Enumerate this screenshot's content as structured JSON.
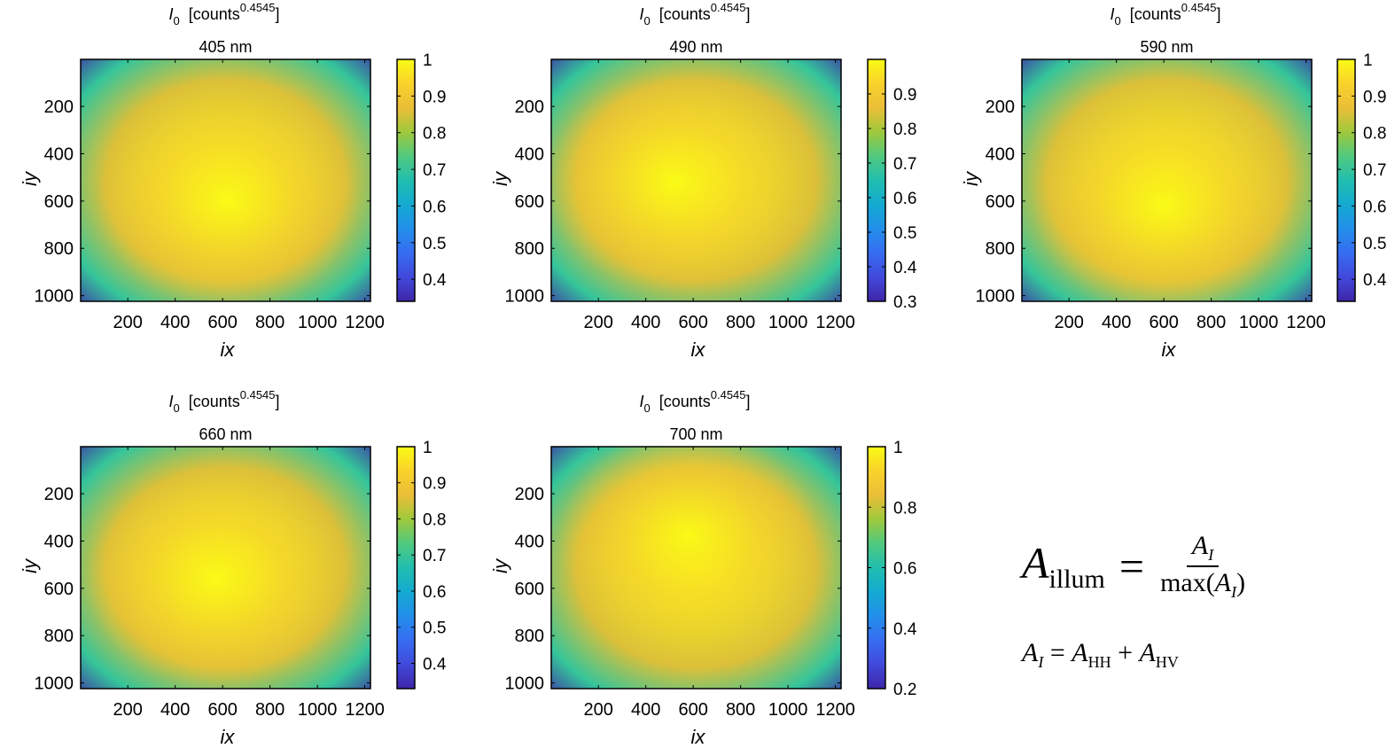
{
  "chart_data": [
    {
      "type": "heatmap",
      "title": "I0 [counts^0.4545]",
      "subtitle": "405 nm",
      "xlabel": "ix",
      "ylabel": "iy",
      "xlim": [
        1,
        1224
      ],
      "ylim": [
        1,
        1024
      ],
      "xticks": [
        200,
        400,
        600,
        800,
        1000,
        1200
      ],
      "yticks": [
        200,
        400,
        600,
        800,
        1000
      ],
      "colormap": "parula",
      "clim": [
        0.34,
        1.0
      ],
      "colorbar_ticks": [
        0.4,
        0.5,
        0.6,
        0.7,
        0.8,
        0.9,
        1
      ],
      "peak_center": [
        620,
        600
      ],
      "min_value": 0.34
    },
    {
      "type": "heatmap",
      "title": "I0 [counts^0.4545]",
      "subtitle": "490 nm",
      "xlabel": "ix",
      "ylabel": "iy",
      "xlim": [
        1,
        1224
      ],
      "ylim": [
        1,
        1024
      ],
      "xticks": [
        200,
        400,
        600,
        800,
        1000,
        1200
      ],
      "yticks": [
        200,
        400,
        600,
        800,
        1000
      ],
      "colormap": "parula",
      "clim": [
        0.3,
        1.0
      ],
      "colorbar_ticks": [
        0.3,
        0.4,
        0.5,
        0.6,
        0.7,
        0.8,
        0.9
      ],
      "peak_center": [
        520,
        520
      ],
      "min_value": 0.3
    },
    {
      "type": "heatmap",
      "title": "I0 [counts^0.4545]",
      "subtitle": "590 nm",
      "xlabel": "ix",
      "ylabel": "iy",
      "xlim": [
        1,
        1224
      ],
      "ylim": [
        1,
        1024
      ],
      "xticks": [
        200,
        400,
        600,
        800,
        1000,
        1200
      ],
      "yticks": [
        200,
        400,
        600,
        800,
        1000
      ],
      "colormap": "parula",
      "clim": [
        0.34,
        1.0
      ],
      "colorbar_ticks": [
        0.4,
        0.5,
        0.6,
        0.7,
        0.8,
        0.9,
        1
      ],
      "peak_center": [
        600,
        620
      ],
      "min_value": 0.34
    },
    {
      "type": "heatmap",
      "title": "I0 [counts^0.4545]",
      "subtitle": "660 nm",
      "xlabel": "ix",
      "ylabel": "iy",
      "xlim": [
        1,
        1224
      ],
      "ylim": [
        1,
        1024
      ],
      "xticks": [
        200,
        400,
        600,
        800,
        1000,
        1200
      ],
      "yticks": [
        200,
        400,
        600,
        800,
        1000
      ],
      "colormap": "parula",
      "clim": [
        0.33,
        1.0
      ],
      "colorbar_ticks": [
        0.4,
        0.5,
        0.6,
        0.7,
        0.8,
        0.9,
        1
      ],
      "peak_center": [
        570,
        560
      ],
      "min_value": 0.33
    },
    {
      "type": "heatmap",
      "title": "I0 [counts^0.4545]",
      "subtitle": "700 nm",
      "xlabel": "ix",
      "ylabel": "iy",
      "xlim": [
        1,
        1224
      ],
      "ylim": [
        1,
        1024
      ],
      "xticks": [
        200,
        400,
        600,
        800,
        1000,
        1200
      ],
      "yticks": [
        200,
        400,
        600,
        800,
        1000
      ],
      "colormap": "parula",
      "clim": [
        0.2,
        1.0
      ],
      "colorbar_ticks": [
        0.2,
        0.4,
        0.6,
        0.8,
        1
      ],
      "peak_center": [
        580,
        380
      ],
      "min_value": 0.2
    }
  ],
  "equations": {
    "main_lhs_base": "A",
    "main_lhs_sub": "illum",
    "main_equals": "=",
    "main_num_base": "A",
    "main_num_sub": "I",
    "main_den_prefix": "max(",
    "main_den_base": "A",
    "main_den_sub": "I",
    "main_den_suffix": ")",
    "sub_lhs_base": "A",
    "sub_lhs_sub": "I",
    "sub_equals": " = ",
    "sub_t1_base": "A",
    "sub_t1_sub": "HH",
    "sub_plus": " + ",
    "sub_t2_base": "A",
    "sub_t2_sub": "HV"
  }
}
